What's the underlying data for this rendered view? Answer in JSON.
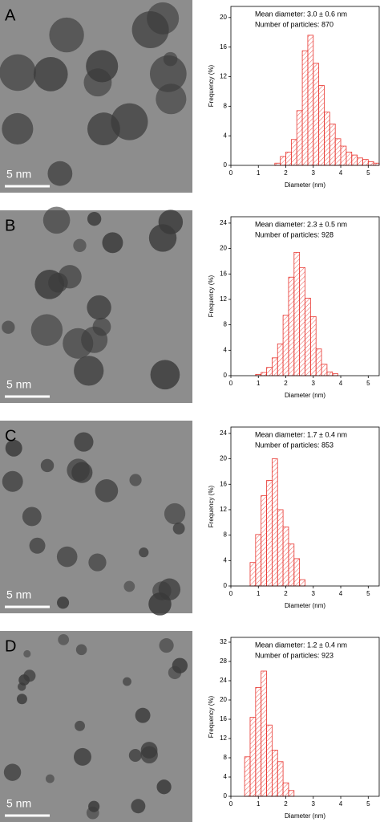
{
  "chart_data": [
    {
      "type": "histogram",
      "panel_label": "A",
      "scale_bar_label": "5 nm",
      "annotations": [
        "Mean diameter: 3.0 ± 0.6 nm",
        "Number of particles: 870"
      ],
      "xlabel": "Diameter (nm)",
      "ylabel": "Frequency (%)",
      "color": "#e8342e",
      "bins": [
        1.6,
        1.8,
        2.0,
        2.2,
        2.4,
        2.6,
        2.8,
        3.0,
        3.2,
        3.4,
        3.6,
        3.8,
        4.0,
        4.2,
        4.4,
        4.6,
        4.8,
        5.0,
        5.2,
        5.4
      ],
      "values": [
        0.3,
        1.2,
        1.8,
        3.5,
        7.4,
        15.5,
        17.6,
        13.8,
        10.8,
        7.2,
        5.6,
        3.6,
        2.6,
        1.8,
        1.4,
        1.0,
        0.8,
        0.5,
        0.3
      ],
      "xlim": [
        0,
        5.4
      ],
      "ylim": [
        0,
        21.5
      ],
      "xticks": [
        0,
        1,
        2,
        3,
        4,
        5
      ],
      "yticks": [
        0,
        4,
        8,
        12,
        16,
        20
      ]
    },
    {
      "type": "histogram",
      "panel_label": "B",
      "scale_bar_label": "5 nm",
      "annotations": [
        "Mean diameter: 2.3 ± 0.5 nm",
        "Number of particles: 928"
      ],
      "xlabel": "Diameter (nm)",
      "ylabel": "Frequency (%)",
      "color": "#e8342e",
      "bins": [
        0.9,
        1.1,
        1.3,
        1.5,
        1.7,
        1.9,
        2.1,
        2.3,
        2.5,
        2.7,
        2.9,
        3.1,
        3.3,
        3.5,
        3.7,
        3.9
      ],
      "values": [
        0.2,
        0.5,
        1.3,
        2.8,
        5.0,
        9.5,
        15.5,
        19.4,
        17.0,
        12.2,
        9.3,
        4.2,
        1.8,
        0.6,
        0.3
      ],
      "xlim": [
        0,
        5.4
      ],
      "ylim": [
        0,
        25
      ],
      "xticks": [
        0,
        1,
        2,
        3,
        4,
        5
      ],
      "yticks": [
        0,
        4,
        8,
        12,
        16,
        20,
        24
      ]
    },
    {
      "type": "histogram",
      "panel_label": "C",
      "scale_bar_label": "5 nm",
      "annotations": [
        "Mean diameter: 1.7 ± 0.4 nm",
        "Number of particles: 853"
      ],
      "xlabel": "Diameter (nm)",
      "ylabel": "Frequency (%)",
      "color": "#e8342e",
      "bins": [
        0.7,
        0.9,
        1.1,
        1.3,
        1.5,
        1.7,
        1.9,
        2.1,
        2.3,
        2.5,
        2.7
      ],
      "values": [
        3.7,
        8.1,
        14.2,
        16.6,
        20.0,
        12.0,
        9.3,
        6.6,
        4.3,
        1.0
      ],
      "xlim": [
        0,
        5.4
      ],
      "ylim": [
        0,
        25
      ],
      "xticks": [
        0,
        1,
        2,
        3,
        4,
        5
      ],
      "yticks": [
        0,
        4,
        8,
        12,
        16,
        20,
        24
      ]
    },
    {
      "type": "histogram",
      "panel_label": "D",
      "scale_bar_label": "5 nm",
      "annotations": [
        "Mean diameter: 1.2 ± 0.4 nm",
        "Number of particles: 923"
      ],
      "xlabel": "Diameter (nm)",
      "ylabel": "Frequency (%)",
      "color": "#e8342e",
      "bins": [
        0.5,
        0.7,
        0.9,
        1.1,
        1.3,
        1.5,
        1.7,
        1.9,
        2.1,
        2.3
      ],
      "values": [
        8.2,
        16.4,
        22.6,
        26.0,
        14.8,
        9.6,
        7.2,
        2.8,
        1.2
      ],
      "xlim": [
        0,
        5.4
      ],
      "ylim": [
        0,
        33
      ],
      "xticks": [
        0,
        1,
        2,
        3,
        4,
        5
      ],
      "yticks": [
        0,
        4,
        8,
        12,
        16,
        20,
        24,
        28,
        32
      ]
    }
  ]
}
